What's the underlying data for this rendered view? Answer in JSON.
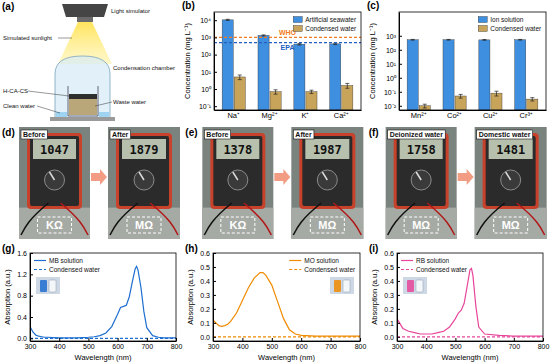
{
  "diagram": {
    "label": "(a)",
    "light_source": "Light simulator",
    "light": "Simulated sunlight",
    "chamber": "Condensation chamber",
    "material": "H-CA-CS",
    "clean": "Clean water",
    "waste": "Waste water"
  },
  "photos": [
    {
      "label": "(d)",
      "before": {
        "caption": "Before",
        "reading": "1047",
        "unit": "KΩ"
      },
      "after": {
        "caption": "After",
        "reading": "1879",
        "unit": "MΩ"
      }
    },
    {
      "label": "(e)",
      "before": {
        "caption": "Before",
        "reading": "1378",
        "unit": "KΩ"
      },
      "after": {
        "caption": "After",
        "reading": "1987",
        "unit": "MΩ"
      }
    },
    {
      "label": "(f)",
      "before": {
        "caption": "Deionized water",
        "reading": "1758",
        "unit": "MΩ"
      },
      "after": {
        "caption": "Domestic water",
        "reading": "1481",
        "unit": "MΩ"
      }
    }
  ],
  "chart_data": [
    {
      "type": "bar",
      "title": "(b)",
      "y_label": "Concentration (mg L⁻¹)",
      "categories": [
        "Na⁺",
        "Mg²⁺",
        "K⁺",
        "Ca²⁺"
      ],
      "series": [
        {
          "name": "Artificial seawater",
          "color": "#3f8fe0",
          "values": [
            10500,
            1300,
            400,
            420
          ],
          "errors": [
            800,
            100,
            40,
            40
          ]
        },
        {
          "name": "Condensed water",
          "color": "#c8a45a",
          "values": [
            5,
            0.7,
            0.7,
            1.6
          ],
          "errors": [
            1.5,
            0.2,
            0.15,
            0.5
          ]
        }
      ],
      "log": "y",
      "ylim": [
        0.06,
        30000
      ],
      "yticks": [
        {
          "value": 0.1,
          "label": "10⁻¹"
        },
        {
          "value": 1,
          "label": "10⁰"
        },
        {
          "value": 10,
          "label": "10¹"
        },
        {
          "value": 100,
          "label": "10²"
        },
        {
          "value": 1000,
          "label": "10³"
        },
        {
          "value": 10000,
          "label": "10⁴"
        }
      ],
      "legend": "upper right",
      "annotations": [
        {
          "text": "WHO",
          "value": 1000,
          "color": "#f47c20",
          "line_style": "dashed"
        },
        {
          "text": "EPA",
          "value": 500,
          "color": "#2060c0",
          "line_style": "dashed"
        }
      ]
    },
    {
      "type": "bar",
      "title": "(c)",
      "y_label": "Concentration (mg L⁻¹)",
      "categories": [
        "Mn²⁺",
        "Co²⁺",
        "Cu²⁺",
        "Cr³⁺"
      ],
      "series": [
        {
          "name": "Ion solution",
          "color": "#3f8fe0",
          "values": [
            520,
            520,
            510,
            520
          ],
          "errors": [
            30,
            30,
            30,
            30
          ]
        },
        {
          "name": "Condensed water",
          "color": "#c8a45a",
          "values": [
            0.01,
            0.05,
            0.08,
            0.03
          ],
          "errors": [
            0.003,
            0.015,
            0.03,
            0.008
          ]
        }
      ],
      "log": "y",
      "ylim": [
        0.005,
        50000
      ],
      "yticks": [
        {
          "value": 0.01,
          "label": "10⁻²"
        },
        {
          "value": 0.1,
          "label": "10⁻¹"
        },
        {
          "value": 1,
          "label": "10⁰"
        },
        {
          "value": 10,
          "label": "10¹"
        },
        {
          "value": 100,
          "label": "10²"
        },
        {
          "value": 1000,
          "label": "10³"
        }
      ],
      "legend": "upper right"
    },
    {
      "type": "line",
      "title": "(g)",
      "x_label": "Wavelength (nm)",
      "y_label": "Absorption (a.u.)",
      "x": [
        300,
        310,
        320,
        330,
        340,
        350,
        360,
        380,
        400,
        420,
        440,
        460,
        480,
        500,
        520,
        540,
        560,
        580,
        600,
        610,
        620,
        630,
        640,
        650,
        660,
        665,
        670,
        680,
        690,
        700,
        720,
        740,
        760,
        780,
        800
      ],
      "series": [
        {
          "name": "MB solution",
          "color": "#1f6fd0",
          "line_style": "solid",
          "values": [
            0.22,
            0.12,
            0.06,
            0.04,
            0.03,
            0.02,
            0.02,
            0.015,
            0.01,
            0.01,
            0.01,
            0.01,
            0.015,
            0.02,
            0.03,
            0.05,
            0.1,
            0.22,
            0.45,
            0.58,
            0.6,
            0.62,
            0.78,
            1.05,
            1.3,
            1.35,
            1.28,
            0.95,
            0.5,
            0.2,
            0.05,
            0.02,
            0.01,
            0.01,
            0.01
          ]
        },
        {
          "name": "Condensed water",
          "color": "#1f6fd0",
          "line_style": "dashed",
          "values": [
            0,
            0,
            0,
            0,
            0,
            0,
            0,
            0,
            0,
            0,
            0,
            0,
            0,
            0,
            0,
            0,
            0,
            0,
            0,
            0,
            0,
            0,
            0,
            0,
            0,
            0,
            0,
            0,
            0,
            0,
            0,
            0,
            0,
            0,
            0
          ]
        }
      ],
      "xlim": [
        300,
        800
      ],
      "xticks": [
        300,
        400,
        500,
        600,
        700,
        800
      ],
      "ylim": [
        -0.05,
        1.6
      ],
      "yticks": [
        {
          "value": 0,
          "label": "0.0"
        },
        0.4,
        0.8,
        1.2,
        1.6
      ],
      "legend": "upper left"
    },
    {
      "type": "line",
      "title": "(h)",
      "x_label": "Wavelength (nm)",
      "y_label": "Absorption (a.u.)",
      "x": [
        300,
        310,
        320,
        330,
        340,
        350,
        360,
        380,
        400,
        420,
        440,
        460,
        470,
        480,
        500,
        520,
        540,
        560,
        580,
        600,
        650,
        700,
        750,
        800
      ],
      "series": [
        {
          "name": "MO solution",
          "color": "#f08a00",
          "line_style": "solid",
          "values": [
            0.12,
            0.1,
            0.08,
            0.075,
            0.08,
            0.09,
            0.11,
            0.17,
            0.26,
            0.35,
            0.42,
            0.46,
            0.46,
            0.44,
            0.37,
            0.25,
            0.13,
            0.05,
            0.02,
            0.01,
            0.005,
            0.005,
            0.005,
            0.005
          ]
        },
        {
          "name": "Condensed water",
          "color": "#f08a00",
          "line_style": "dashed",
          "values": [
            0,
            0,
            0,
            0,
            0,
            0,
            0,
            0,
            0,
            0,
            0,
            0,
            0,
            0,
            0,
            0,
            0,
            0,
            0,
            0,
            0,
            0,
            0,
            0
          ]
        }
      ],
      "xlim": [
        300,
        800
      ],
      "xticks": [
        300,
        400,
        500,
        600,
        700,
        800
      ],
      "ylim": [
        -0.03,
        0.6
      ],
      "yticks": [
        {
          "value": 0,
          "label": "0.0"
        },
        0.1,
        0.2,
        0.3,
        0.4,
        0.5,
        0.6
      ],
      "legend": "upper right"
    },
    {
      "type": "line",
      "title": "(i)",
      "x_label": "Wavelength (nm)",
      "y_label": "Absorption (a.u.)",
      "x": [
        300,
        320,
        340,
        360,
        380,
        400,
        420,
        440,
        460,
        480,
        500,
        510,
        520,
        530,
        540,
        550,
        555,
        560,
        570,
        580,
        600,
        650,
        700,
        750,
        800
      ],
      "series": [
        {
          "name": "RB solution",
          "color": "#e8459a",
          "line_style": "solid",
          "values": [
            0.13,
            0.06,
            0.04,
            0.03,
            0.02,
            0.02,
            0.02,
            0.03,
            0.04,
            0.07,
            0.13,
            0.17,
            0.19,
            0.24,
            0.36,
            0.48,
            0.49,
            0.44,
            0.22,
            0.07,
            0.02,
            0.01,
            0.005,
            0.005,
            0.005
          ]
        },
        {
          "name": "Condensed water",
          "color": "#e8459a",
          "line_style": "dashed",
          "values": [
            0,
            0,
            0,
            0,
            0,
            0,
            0,
            0,
            0,
            0,
            0,
            0,
            0,
            0,
            0,
            0,
            0,
            0,
            0,
            0,
            0,
            0,
            0,
            0,
            0
          ]
        }
      ],
      "xlim": [
        300,
        800
      ],
      "xticks": [
        300,
        400,
        500,
        600,
        700,
        800
      ],
      "ylim": [
        -0.03,
        0.6
      ],
      "yticks": [
        {
          "value": 0,
          "label": "0.0"
        },
        0.1,
        0.2,
        0.3,
        0.4,
        0.5,
        0.6
      ],
      "legend": "upper left"
    }
  ]
}
